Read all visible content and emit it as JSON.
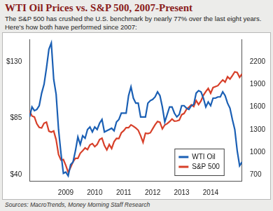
{
  "chart_data": {
    "type": "line",
    "title": "WTI Oil Prices vs. S&P 500, 2007-Present",
    "subtitle": "The S&P 500 has crushed the U.S. benchmark by nearly 77% over the last eight years. Here's how both have performed since 2007:",
    "source": "Sources: MacroTrends, Money Morning Staff Research",
    "x": [
      2007.75,
      2007.833,
      2007.917,
      2008,
      2008.083,
      2008.167,
      2008.25,
      2008.333,
      2008.417,
      2008.5,
      2008.583,
      2008.667,
      2008.75,
      2008.833,
      2008.917,
      2009,
      2009.083,
      2009.167,
      2009.25,
      2009.333,
      2009.417,
      2009.5,
      2009.583,
      2009.667,
      2009.75,
      2009.833,
      2009.917,
      2010,
      2010.083,
      2010.167,
      2010.25,
      2010.333,
      2010.417,
      2010.5,
      2010.583,
      2010.667,
      2010.75,
      2010.833,
      2010.917,
      2011,
      2011.083,
      2011.167,
      2011.25,
      2011.333,
      2011.417,
      2011.5,
      2011.583,
      2011.667,
      2011.75,
      2011.833,
      2011.917,
      2012,
      2012.083,
      2012.167,
      2012.25,
      2012.333,
      2012.417,
      2012.5,
      2012.583,
      2012.667,
      2012.75,
      2012.833,
      2012.917,
      2013,
      2013.083,
      2013.167,
      2013.25,
      2013.333,
      2013.417,
      2013.5,
      2013.583,
      2013.667,
      2013.75,
      2013.833,
      2013.917,
      2014,
      2014.083,
      2014.167,
      2014.25,
      2014.333,
      2014.417,
      2014.5,
      2014.583,
      2014.667,
      2014.75,
      2014.833,
      2014.917,
      2015,
      2015.083
    ],
    "xlim": [
      2007.75,
      2015.083
    ],
    "xticks": [
      2009,
      2010,
      2011,
      2012,
      2013,
      2014
    ],
    "ylim": [
      35,
      148
    ],
    "yticks": [
      {
        "value": 40,
        "label": "$40"
      },
      {
        "value": 85,
        "label": "$85"
      },
      {
        "value": 130,
        "label": "$130"
      }
    ],
    "y2lim": [
      620,
      2500
    ],
    "y2ticks": [
      700,
      1000,
      1300,
      1600,
      1900,
      2200
    ],
    "grid": false,
    "legend": "lower right",
    "series": [
      {
        "name": "WTI Oil",
        "color": "#1a5fb4",
        "values": [
          86,
          94,
          91,
          92,
          95,
          105,
          112,
          125,
          140,
          145,
          116,
          104,
          76,
          57,
          41,
          42,
          39,
          48,
          50,
          59,
          70,
          64,
          71,
          69,
          76,
          78,
          74,
          78,
          76,
          81,
          84,
          74,
          75,
          76,
          77,
          75,
          82,
          84,
          89,
          89,
          89,
          103,
          110,
          101,
          97,
          97,
          86,
          86,
          86,
          97,
          99,
          100,
          102,
          106,
          103,
          94,
          82,
          88,
          94,
          94,
          89,
          86,
          88,
          95,
          95,
          93,
          92,
          95,
          96,
          105,
          107,
          106,
          101,
          94,
          98,
          95,
          101,
          101,
          102,
          102,
          106,
          103,
          97,
          93,
          84,
          76,
          59,
          47,
          50
        ]
      },
      {
        "name": "S&P 500",
        "color": "#d7402a",
        "axis": "y2",
        "values": [
          1549,
          1481,
          1468,
          1378,
          1330,
          1322,
          1385,
          1400,
          1280,
          1267,
          1282,
          1166,
          969,
          896,
          903,
          826,
          735,
          798,
          873,
          919,
          919,
          987,
          1021,
          1057,
          1036,
          1096,
          1115,
          1074,
          1104,
          1169,
          1187,
          1089,
          1031,
          1102,
          1049,
          1141,
          1183,
          1181,
          1258,
          1286,
          1327,
          1326,
          1364,
          1345,
          1321,
          1292,
          1219,
          1131,
          1253,
          1247,
          1258,
          1312,
          1366,
          1408,
          1398,
          1310,
          1362,
          1379,
          1407,
          1441,
          1412,
          1416,
          1426,
          1498,
          1515,
          1569,
          1598,
          1631,
          1606,
          1686,
          1633,
          1682,
          1757,
          1806,
          1848,
          1783,
          1859,
          1872,
          1884,
          1924,
          1960,
          1931,
          2003,
          1972,
          2018,
          2068,
          2059,
          1995,
          2040
        ]
      }
    ]
  }
}
